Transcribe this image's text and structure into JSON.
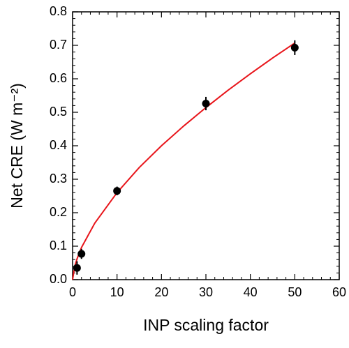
{
  "chart_data": {
    "type": "scatter",
    "xlabel": "INP scaling factor",
    "ylabel": "Net CRE (W m⁻²)",
    "xlim": [
      0,
      60
    ],
    "xticks": [
      0,
      10,
      20,
      30,
      40,
      50,
      60
    ],
    "ylim": [
      0,
      0.8
    ],
    "yticks": [
      {
        "value": 0,
        "label": "0.0"
      },
      0.1,
      0.2,
      0.3,
      0.4,
      0.5,
      0.6,
      0.7,
      0.8
    ],
    "series": [
      {
        "type": "line",
        "color": "#e8141a",
        "x": [
          0,
          0.5,
          1,
          2,
          5,
          10,
          15,
          20,
          25,
          30,
          35,
          40,
          45,
          50
        ],
        "values": [
          0,
          0.041,
          0.062,
          0.096,
          0.169,
          0.26,
          0.335,
          0.4,
          0.459,
          0.514,
          0.566,
          0.615,
          0.662,
          0.707
        ]
      },
      {
        "type": "scatter",
        "color": "#000000",
        "x": [
          1,
          2,
          10,
          30,
          50
        ],
        "values": [
          0.035,
          0.077,
          0.265,
          0.526,
          0.693
        ],
        "errors": [
          0.02,
          0.015,
          0.013,
          0.02,
          0.022
        ]
      }
    ]
  }
}
